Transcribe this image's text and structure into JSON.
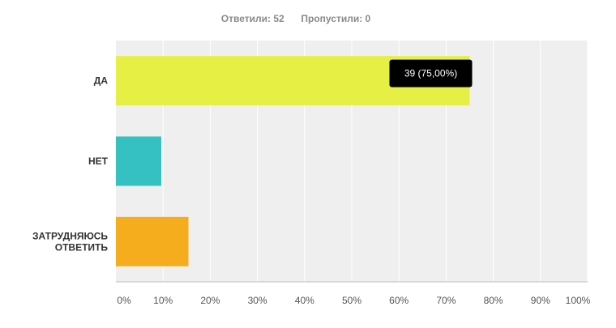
{
  "summary": {
    "answered_label": "Ответили:",
    "answered_value": "52",
    "skipped_label": "Пропустили:",
    "skipped_value": "0"
  },
  "colors": {
    "plot_bg": "#efefef",
    "grid": "#ffffff",
    "axis": "#bdbdbd",
    "tooltip_bg": "#000000"
  },
  "chart_data": {
    "type": "bar",
    "orientation": "horizontal",
    "categories": [
      [
        "ДА"
      ],
      [
        "НЕТ"
      ],
      [
        "ЗАТРУДНЯЮСЬ",
        "ОТВЕТИТЬ"
      ]
    ],
    "values": [
      75.0,
      9.62,
      15.38
    ],
    "colors": [
      "#e6ef44",
      "#35c1c1",
      "#f5ad1d"
    ],
    "xlim": [
      0,
      100
    ],
    "xticks": [
      0,
      10,
      20,
      30,
      40,
      50,
      60,
      70,
      80,
      90,
      100
    ],
    "tick_suffix": "%",
    "grid": true,
    "tooltip": {
      "category_index": 0,
      "text": "39 (75,00%)"
    }
  }
}
